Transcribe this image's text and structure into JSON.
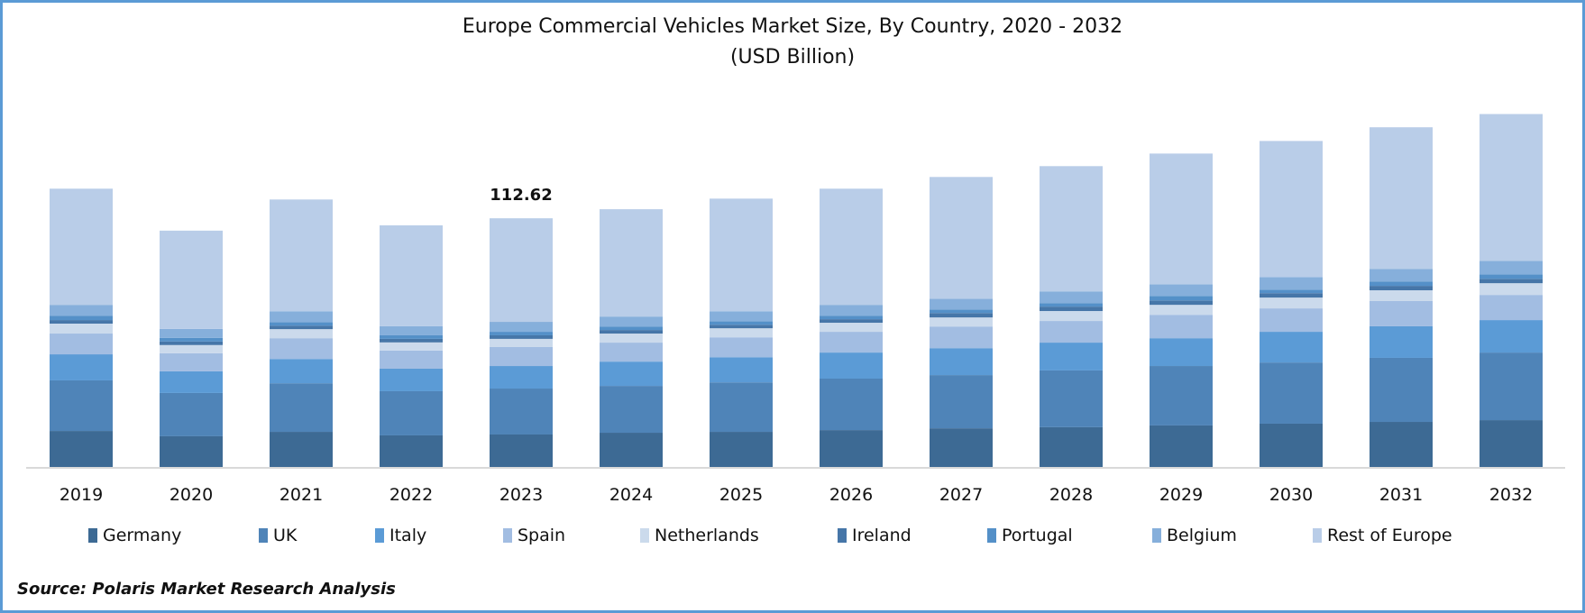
{
  "chart_data": {
    "type": "bar",
    "stacked": true,
    "title": "Europe Commercial Vehicles Market Size, By Country, 2020 - 2032",
    "subtitle": "(USD Billion)",
    "xlabel": "",
    "ylabel": "",
    "ylim": [
      0,
      170
    ],
    "grid": false,
    "legend_position": "bottom",
    "categories": [
      "2019",
      "2020",
      "2021",
      "2022",
      "2023",
      "2024",
      "2025",
      "2026",
      "2027",
      "2028",
      "2029",
      "2030",
      "2031",
      "2032"
    ],
    "series": [
      {
        "name": "Germany",
        "color": "#3d6a94",
        "values": [
          16.3,
          13.9,
          15.9,
          14.3,
          14.7,
          15.5,
          15.9,
          16.7,
          17.5,
          18.0,
          18.8,
          19.6,
          20.4,
          21.2
        ]
      },
      {
        "name": "UK",
        "color": "#4f84b8",
        "values": [
          22.9,
          19.6,
          22.0,
          20.0,
          20.8,
          21.2,
          22.4,
          23.3,
          24.1,
          25.7,
          26.9,
          27.7,
          29.0,
          30.6
        ]
      },
      {
        "name": "Italy",
        "color": "#5b9bd6",
        "values": [
          11.8,
          9.8,
          11.0,
          10.2,
          10.2,
          11.0,
          11.4,
          11.8,
          12.2,
          12.6,
          12.6,
          13.9,
          14.3,
          14.7
        ]
      },
      {
        "name": "Spain",
        "color": "#a2bde2",
        "values": [
          9.4,
          8.2,
          9.4,
          8.2,
          8.6,
          8.6,
          9.0,
          9.4,
          9.8,
          9.8,
          10.6,
          10.6,
          11.4,
          11.4
        ]
      },
      {
        "name": "Netherlands",
        "color": "#cbdaec",
        "values": [
          4.5,
          3.7,
          4.1,
          3.7,
          3.7,
          4.1,
          4.1,
          4.1,
          4.1,
          4.5,
          4.5,
          4.9,
          4.9,
          5.3
        ]
      },
      {
        "name": "Ireland",
        "color": "#4676a8",
        "values": [
          1.6,
          1.6,
          1.6,
          1.6,
          1.6,
          1.6,
          1.6,
          1.6,
          2.0,
          2.0,
          2.0,
          2.0,
          2.0,
          2.0
        ]
      },
      {
        "name": "Portugal",
        "color": "#5490c8",
        "values": [
          2.0,
          1.6,
          1.6,
          1.6,
          1.6,
          1.6,
          1.6,
          1.6,
          1.6,
          1.6,
          2.0,
          1.6,
          2.0,
          2.0
        ]
      },
      {
        "name": "Belgium",
        "color": "#86afdb",
        "values": [
          4.9,
          4.1,
          4.9,
          4.1,
          4.5,
          4.5,
          4.5,
          4.9,
          4.9,
          5.3,
          5.3,
          5.7,
          5.7,
          6.1
        ]
      },
      {
        "name": "Rest of Europe",
        "color": "#b9cde8",
        "values": [
          52.6,
          44.5,
          50.6,
          45.7,
          46.9,
          48.6,
          51.0,
          52.6,
          55.1,
          56.7,
          59.2,
          61.6,
          64.1,
          66.5
        ]
      }
    ],
    "annotations": [
      {
        "category": "2023",
        "text": "112.62"
      }
    ]
  },
  "source": "Source: Polaris Market Research Analysis",
  "border_color": "#5b9bd5"
}
